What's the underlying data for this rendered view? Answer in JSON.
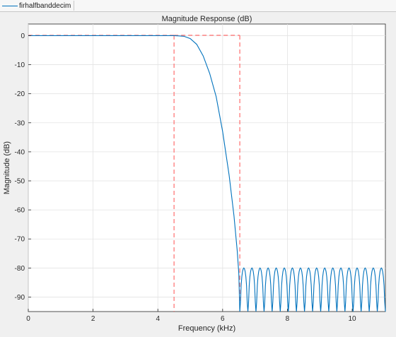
{
  "legend": {
    "entry_label": "firhalfbanddecim",
    "line_color": "#0072bd"
  },
  "chart_data": {
    "type": "line",
    "title": "Magnitude Response (dB)",
    "xlabel": "Frequency (kHz)",
    "ylabel": "Magnitude (dB)",
    "xlim": [
      0,
      11.025
    ],
    "ylim": [
      -95,
      4
    ],
    "grid": true,
    "x_ticks": [
      0,
      2,
      4,
      6,
      8,
      10
    ],
    "y_ticks": [
      0,
      -10,
      -20,
      -30,
      -40,
      -50,
      -60,
      -70,
      -80,
      -90
    ],
    "series": [
      {
        "color": "#0072bd",
        "passband_edge_khz": 4.5,
        "stopband_edge_khz": 6.53,
        "stopband_ripple_peak_db": -80,
        "stopband_lobe_count": 18,
        "x": [
          0,
          4.5,
          4.8,
          5.0,
          5.2,
          5.4,
          5.6,
          5.8,
          6.0,
          6.2,
          6.35,
          6.45,
          6.5,
          6.53
        ],
        "y": [
          0,
          0,
          -0.2,
          -1,
          -3,
          -7,
          -13,
          -21,
          -33,
          -48,
          -62,
          -74,
          -82,
          -95
        ]
      }
    ],
    "mask": {
      "color": "#ff6e6e",
      "style": "dashed",
      "segments": [
        {
          "x": [
            0,
            4.5
          ],
          "y": [
            0.1,
            0.1
          ]
        },
        {
          "x": [
            4.5,
            4.5
          ],
          "y": [
            0.1,
            -95
          ]
        },
        {
          "x": [
            6.53,
            6.53
          ],
          "y": [
            0.1,
            -95
          ]
        },
        {
          "x": [
            4.5,
            6.53
          ],
          "y": [
            0.1,
            0.1
          ]
        }
      ]
    }
  }
}
